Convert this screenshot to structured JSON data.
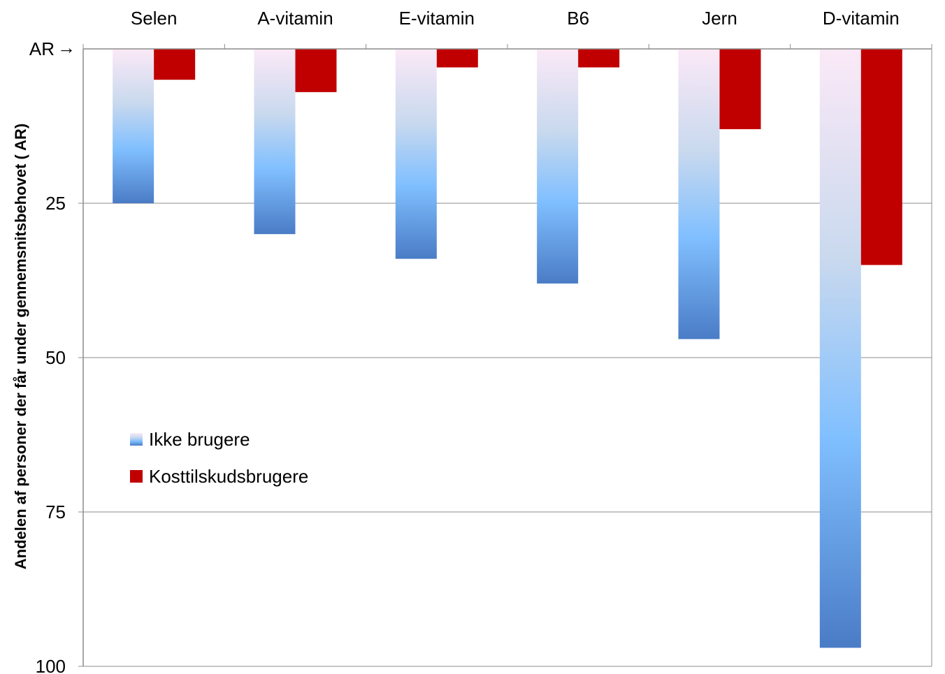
{
  "chart_data": {
    "type": "bar",
    "orientation": "inverted-vertical",
    "title": "",
    "xlabel": "",
    "ylabel": "Andelen af personer der får under gennemsnitsbehovet ( AR)",
    "reference_label": "AR",
    "reference_arrow": "→",
    "categories": [
      "Selen",
      "A-vitamin",
      "E-vitamin",
      "B6",
      "Jern",
      "D-vitamin"
    ],
    "ylim": [
      0,
      100
    ],
    "y_ticks": [
      25,
      50,
      75,
      100
    ],
    "y_tick_labels": [
      "25",
      "50",
      "75",
      "100"
    ],
    "x_axis_position": "top",
    "grid": true,
    "legend_position": "left-middle",
    "series": [
      {
        "name": "Ikke brugere",
        "values": [
          25,
          30,
          34,
          38,
          47,
          97
        ],
        "color": "#5b8fd6",
        "gradient": [
          "#fbe9f7",
          "#c9d9ee",
          "#80bfff",
          "#4a7cc6"
        ]
      },
      {
        "name": "Kosttilskudsbrugere",
        "values": [
          5,
          7,
          3,
          3,
          13,
          35
        ],
        "color": "#c00000"
      }
    ]
  }
}
